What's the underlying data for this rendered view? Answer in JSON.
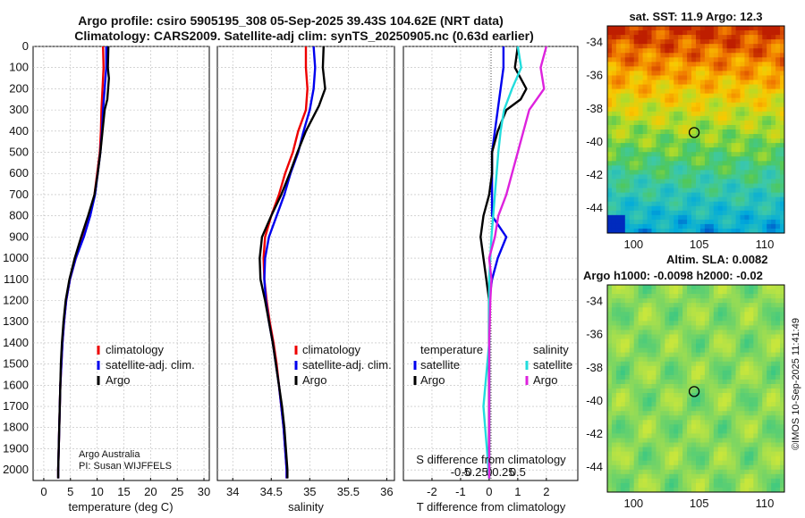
{
  "title_line1": "Argo profile: csiro 5905195_308 05-Sep-2025 39.43S 104.62E (NRT data)",
  "title_line2": "Climatology: CARS2009. Satellite-adj clim: synTS_20250905.nc (0.63d earlier)",
  "credit_line1": "Argo Australia",
  "credit_line2": "PI: Susan WIJFFELS",
  "watermark": "©IMOS 10-Sep-2025 11:41:49",
  "colors": {
    "climatology": "#ee0000",
    "satellite": "#0000ee",
    "argo": "#000000",
    "sal_satellite": "#22dddd",
    "sal_argo": "#dd22dd"
  },
  "chart_data": [
    {
      "id": "temperature",
      "type": "line",
      "xlabel": "temperature (deg C)",
      "ylabel": "pressure",
      "xlim": [
        -2,
        31
      ],
      "ylim": [
        2050,
        0
      ],
      "xticks": [
        0,
        5,
        10,
        15,
        20,
        25,
        30
      ],
      "yticks": [
        0,
        100,
        200,
        300,
        400,
        500,
        600,
        700,
        800,
        900,
        1000,
        1100,
        1200,
        1300,
        1400,
        1500,
        1600,
        1700,
        1800,
        1900,
        2000
      ],
      "legend": [
        "climatology",
        "satellite-adj. clim.",
        "Argo"
      ],
      "series": [
        {
          "name": "climatology",
          "color": "#ee0000",
          "points": [
            [
              11.1,
              0
            ],
            [
              11.2,
              100
            ],
            [
              11.0,
              200
            ],
            [
              10.8,
              300
            ],
            [
              10.7,
              400
            ],
            [
              10.5,
              500
            ],
            [
              10.0,
              600
            ],
            [
              9.5,
              700
            ],
            [
              8.6,
              800
            ],
            [
              7.4,
              900
            ],
            [
              6.0,
              1000
            ],
            [
              4.9,
              1100
            ],
            [
              4.2,
              1200
            ],
            [
              3.8,
              1300
            ],
            [
              3.5,
              1400
            ],
            [
              3.3,
              1500
            ],
            [
              3.1,
              1600
            ],
            [
              3.0,
              1700
            ],
            [
              2.9,
              1800
            ],
            [
              2.8,
              1900
            ],
            [
              2.7,
              2000
            ],
            [
              2.7,
              2040
            ]
          ]
        },
        {
          "name": "satellite-adj. clim.",
          "color": "#0000ee",
          "points": [
            [
              11.7,
              0
            ],
            [
              11.7,
              100
            ],
            [
              11.4,
              200
            ],
            [
              11.1,
              300
            ],
            [
              10.9,
              400
            ],
            [
              10.6,
              500
            ],
            [
              10.1,
              600
            ],
            [
              9.6,
              700
            ],
            [
              8.7,
              800
            ],
            [
              7.5,
              900
            ],
            [
              6.0,
              1000
            ],
            [
              4.9,
              1100
            ],
            [
              4.2,
              1200
            ],
            [
              3.8,
              1300
            ],
            [
              3.5,
              1400
            ],
            [
              3.3,
              1500
            ],
            [
              3.1,
              1600
            ],
            [
              3.0,
              1700
            ],
            [
              2.9,
              1800
            ],
            [
              2.8,
              1900
            ],
            [
              2.7,
              2000
            ],
            [
              2.7,
              2040
            ]
          ]
        },
        {
          "name": "Argo",
          "color": "#000000",
          "points": [
            [
              12.1,
              0
            ],
            [
              12.0,
              100
            ],
            [
              12.2,
              150
            ],
            [
              11.9,
              250
            ],
            [
              11.4,
              300
            ],
            [
              11.0,
              400
            ],
            [
              10.6,
              500
            ],
            [
              10.1,
              600
            ],
            [
              9.5,
              700
            ],
            [
              8.3,
              800
            ],
            [
              7.0,
              900
            ],
            [
              5.8,
              1000
            ],
            [
              4.8,
              1100
            ],
            [
              4.1,
              1200
            ],
            [
              3.7,
              1300
            ],
            [
              3.4,
              1400
            ],
            [
              3.2,
              1500
            ],
            [
              3.1,
              1600
            ],
            [
              3.0,
              1700
            ],
            [
              2.9,
              1800
            ],
            [
              2.8,
              1900
            ],
            [
              2.7,
              2000
            ],
            [
              2.7,
              2040
            ]
          ]
        }
      ]
    },
    {
      "id": "salinity",
      "type": "line",
      "xlabel": "salinity",
      "xlim": [
        33.8,
        36.1
      ],
      "ylim": [
        2050,
        0
      ],
      "xticks": [
        34,
        34.5,
        35,
        35.5,
        36
      ],
      "xtick_labels": [
        "34",
        "34.5",
        "35",
        "35.5",
        "36"
      ],
      "legend": [
        "climatology",
        "satellite-adj. clim.",
        "Argo"
      ],
      "series": [
        {
          "name": "climatology",
          "color": "#ee0000",
          "points": [
            [
              34.95,
              0
            ],
            [
              34.95,
              100
            ],
            [
              34.97,
              200
            ],
            [
              34.95,
              300
            ],
            [
              34.85,
              400
            ],
            [
              34.78,
              500
            ],
            [
              34.68,
              600
            ],
            [
              34.6,
              700
            ],
            [
              34.5,
              800
            ],
            [
              34.42,
              900
            ],
            [
              34.4,
              1000
            ],
            [
              34.41,
              1100
            ],
            [
              34.44,
              1200
            ],
            [
              34.48,
              1300
            ],
            [
              34.53,
              1400
            ],
            [
              34.57,
              1500
            ],
            [
              34.6,
              1600
            ],
            [
              34.63,
              1700
            ],
            [
              34.66,
              1800
            ],
            [
              34.68,
              1900
            ],
            [
              34.7,
              2000
            ],
            [
              34.7,
              2040
            ]
          ]
        },
        {
          "name": "satellite-adj. clim.",
          "color": "#0000ee",
          "points": [
            [
              35.05,
              0
            ],
            [
              35.07,
              100
            ],
            [
              35.05,
              200
            ],
            [
              35.0,
              300
            ],
            [
              34.92,
              400
            ],
            [
              34.85,
              500
            ],
            [
              34.75,
              600
            ],
            [
              34.67,
              700
            ],
            [
              34.57,
              800
            ],
            [
              34.47,
              900
            ],
            [
              34.42,
              1000
            ],
            [
              34.41,
              1100
            ],
            [
              34.43,
              1200
            ],
            [
              34.47,
              1300
            ],
            [
              34.52,
              1400
            ],
            [
              34.56,
              1500
            ],
            [
              34.6,
              1600
            ],
            [
              34.63,
              1700
            ],
            [
              34.66,
              1800
            ],
            [
              34.68,
              1900
            ],
            [
              34.7,
              2000
            ],
            [
              34.7,
              2040
            ]
          ]
        },
        {
          "name": "Argo",
          "color": "#000000",
          "points": [
            [
              35.18,
              0
            ],
            [
              35.17,
              100
            ],
            [
              35.2,
              200
            ],
            [
              35.12,
              280
            ],
            [
              34.95,
              400
            ],
            [
              34.84,
              500
            ],
            [
              34.74,
              600
            ],
            [
              34.63,
              700
            ],
            [
              34.5,
              800
            ],
            [
              34.38,
              900
            ],
            [
              34.35,
              1000
            ],
            [
              34.36,
              1100
            ],
            [
              34.42,
              1200
            ],
            [
              34.47,
              1300
            ],
            [
              34.52,
              1400
            ],
            [
              34.56,
              1500
            ],
            [
              34.6,
              1600
            ],
            [
              34.64,
              1700
            ],
            [
              34.67,
              1800
            ],
            [
              34.69,
              1900
            ],
            [
              34.71,
              2000
            ],
            [
              34.71,
              2040
            ]
          ]
        }
      ]
    },
    {
      "id": "differences",
      "type": "line",
      "xlabel": "T difference from climatology",
      "xlabel_top": "S difference from climatology",
      "xlim": [
        -3,
        3.1
      ],
      "ylim": [
        2050,
        0
      ],
      "xticks": [
        -2,
        -1,
        0,
        1,
        2
      ],
      "top_ticks": [
        -0.5,
        -0.25,
        0,
        0.25,
        0.5
      ],
      "top_tick_labels": [
        "-0.5",
        "-0.25",
        "0",
        "0.25",
        "0.5"
      ],
      "legend_temperature_title": "temperature",
      "legend_salinity_title": "salinity",
      "legend": [
        "satellite",
        "Argo",
        "satellite",
        "Argo"
      ],
      "series": [
        {
          "name": "T satellite",
          "color": "#0000ee",
          "points": [
            [
              0.5,
              0
            ],
            [
              0.5,
              100
            ],
            [
              0.4,
              200
            ],
            [
              0.3,
              300
            ],
            [
              0.2,
              400
            ],
            [
              0.1,
              500
            ],
            [
              0.1,
              600
            ],
            [
              0.1,
              700
            ],
            [
              0.1,
              800
            ],
            [
              0.6,
              900
            ],
            [
              0.3,
              1000
            ],
            [
              0.1,
              1100
            ],
            [
              0.0,
              1200
            ],
            [
              0.0,
              1400
            ],
            [
              0.0,
              1600
            ],
            [
              0.0,
              2040
            ]
          ]
        },
        {
          "name": "T Argo",
          "color": "#000000",
          "points": [
            [
              1.0,
              0
            ],
            [
              0.9,
              100
            ],
            [
              1.3,
              200
            ],
            [
              1.1,
              250
            ],
            [
              0.6,
              300
            ],
            [
              0.3,
              400
            ],
            [
              0.1,
              500
            ],
            [
              0.1,
              600
            ],
            [
              0.0,
              700
            ],
            [
              -0.2,
              800
            ],
            [
              -0.3,
              900
            ],
            [
              -0.2,
              1000
            ],
            [
              -0.1,
              1100
            ],
            [
              0.0,
              1200
            ],
            [
              0.0,
              2040
            ]
          ]
        },
        {
          "name": "S satellite",
          "color": "#22dddd",
          "points": [
            [
              0.25,
              0
            ],
            [
              0.28,
              100
            ],
            [
              0.2,
              200
            ],
            [
              0.13,
              300
            ],
            [
              0.1,
              400
            ],
            [
              0.08,
              500
            ],
            [
              0.05,
              700
            ],
            [
              0.02,
              900
            ],
            [
              0.0,
              1100
            ],
            [
              0.0,
              1400
            ],
            [
              -0.05,
              1700
            ],
            [
              -0.02,
              1900
            ],
            [
              0.0,
              2040
            ]
          ]
        },
        {
          "name": "S Argo",
          "color": "#dd22dd",
          "points": [
            [
              0.5,
              0
            ],
            [
              0.45,
              100
            ],
            [
              0.48,
              200
            ],
            [
              0.35,
              300
            ],
            [
              0.3,
              400
            ],
            [
              0.25,
              500
            ],
            [
              0.2,
              600
            ],
            [
              0.15,
              700
            ],
            [
              0.08,
              800
            ],
            [
              0.05,
              900
            ],
            [
              0.0,
              1000
            ],
            [
              0.02,
              1100
            ],
            [
              0.01,
              1200
            ],
            [
              0.0,
              1400
            ],
            [
              0.0,
              2040
            ]
          ]
        }
      ]
    },
    {
      "id": "sst_map",
      "type": "heatmap",
      "title": "sat. SST: 11.9 Argo: 12.3",
      "xlim": [
        98,
        111.5
      ],
      "ylim": [
        -45.5,
        -33
      ],
      "xticks": [
        100,
        105,
        110
      ],
      "yticks": [
        -34,
        -36,
        -38,
        -40,
        -42,
        -44
      ],
      "argo_position": [
        104.62,
        -39.43
      ]
    },
    {
      "id": "sla_map",
      "type": "heatmap",
      "title": "Altim. SLA: 0.0082",
      "subtitle": "Argo h1000: -0.0098 h2000: -0.02",
      "xlim": [
        98,
        111.5
      ],
      "ylim": [
        -45.5,
        -33
      ],
      "xticks": [
        100,
        105,
        110
      ],
      "yticks": [
        -34,
        -36,
        -38,
        -40,
        -42,
        -44
      ],
      "argo_position": [
        104.62,
        -39.43
      ]
    }
  ]
}
